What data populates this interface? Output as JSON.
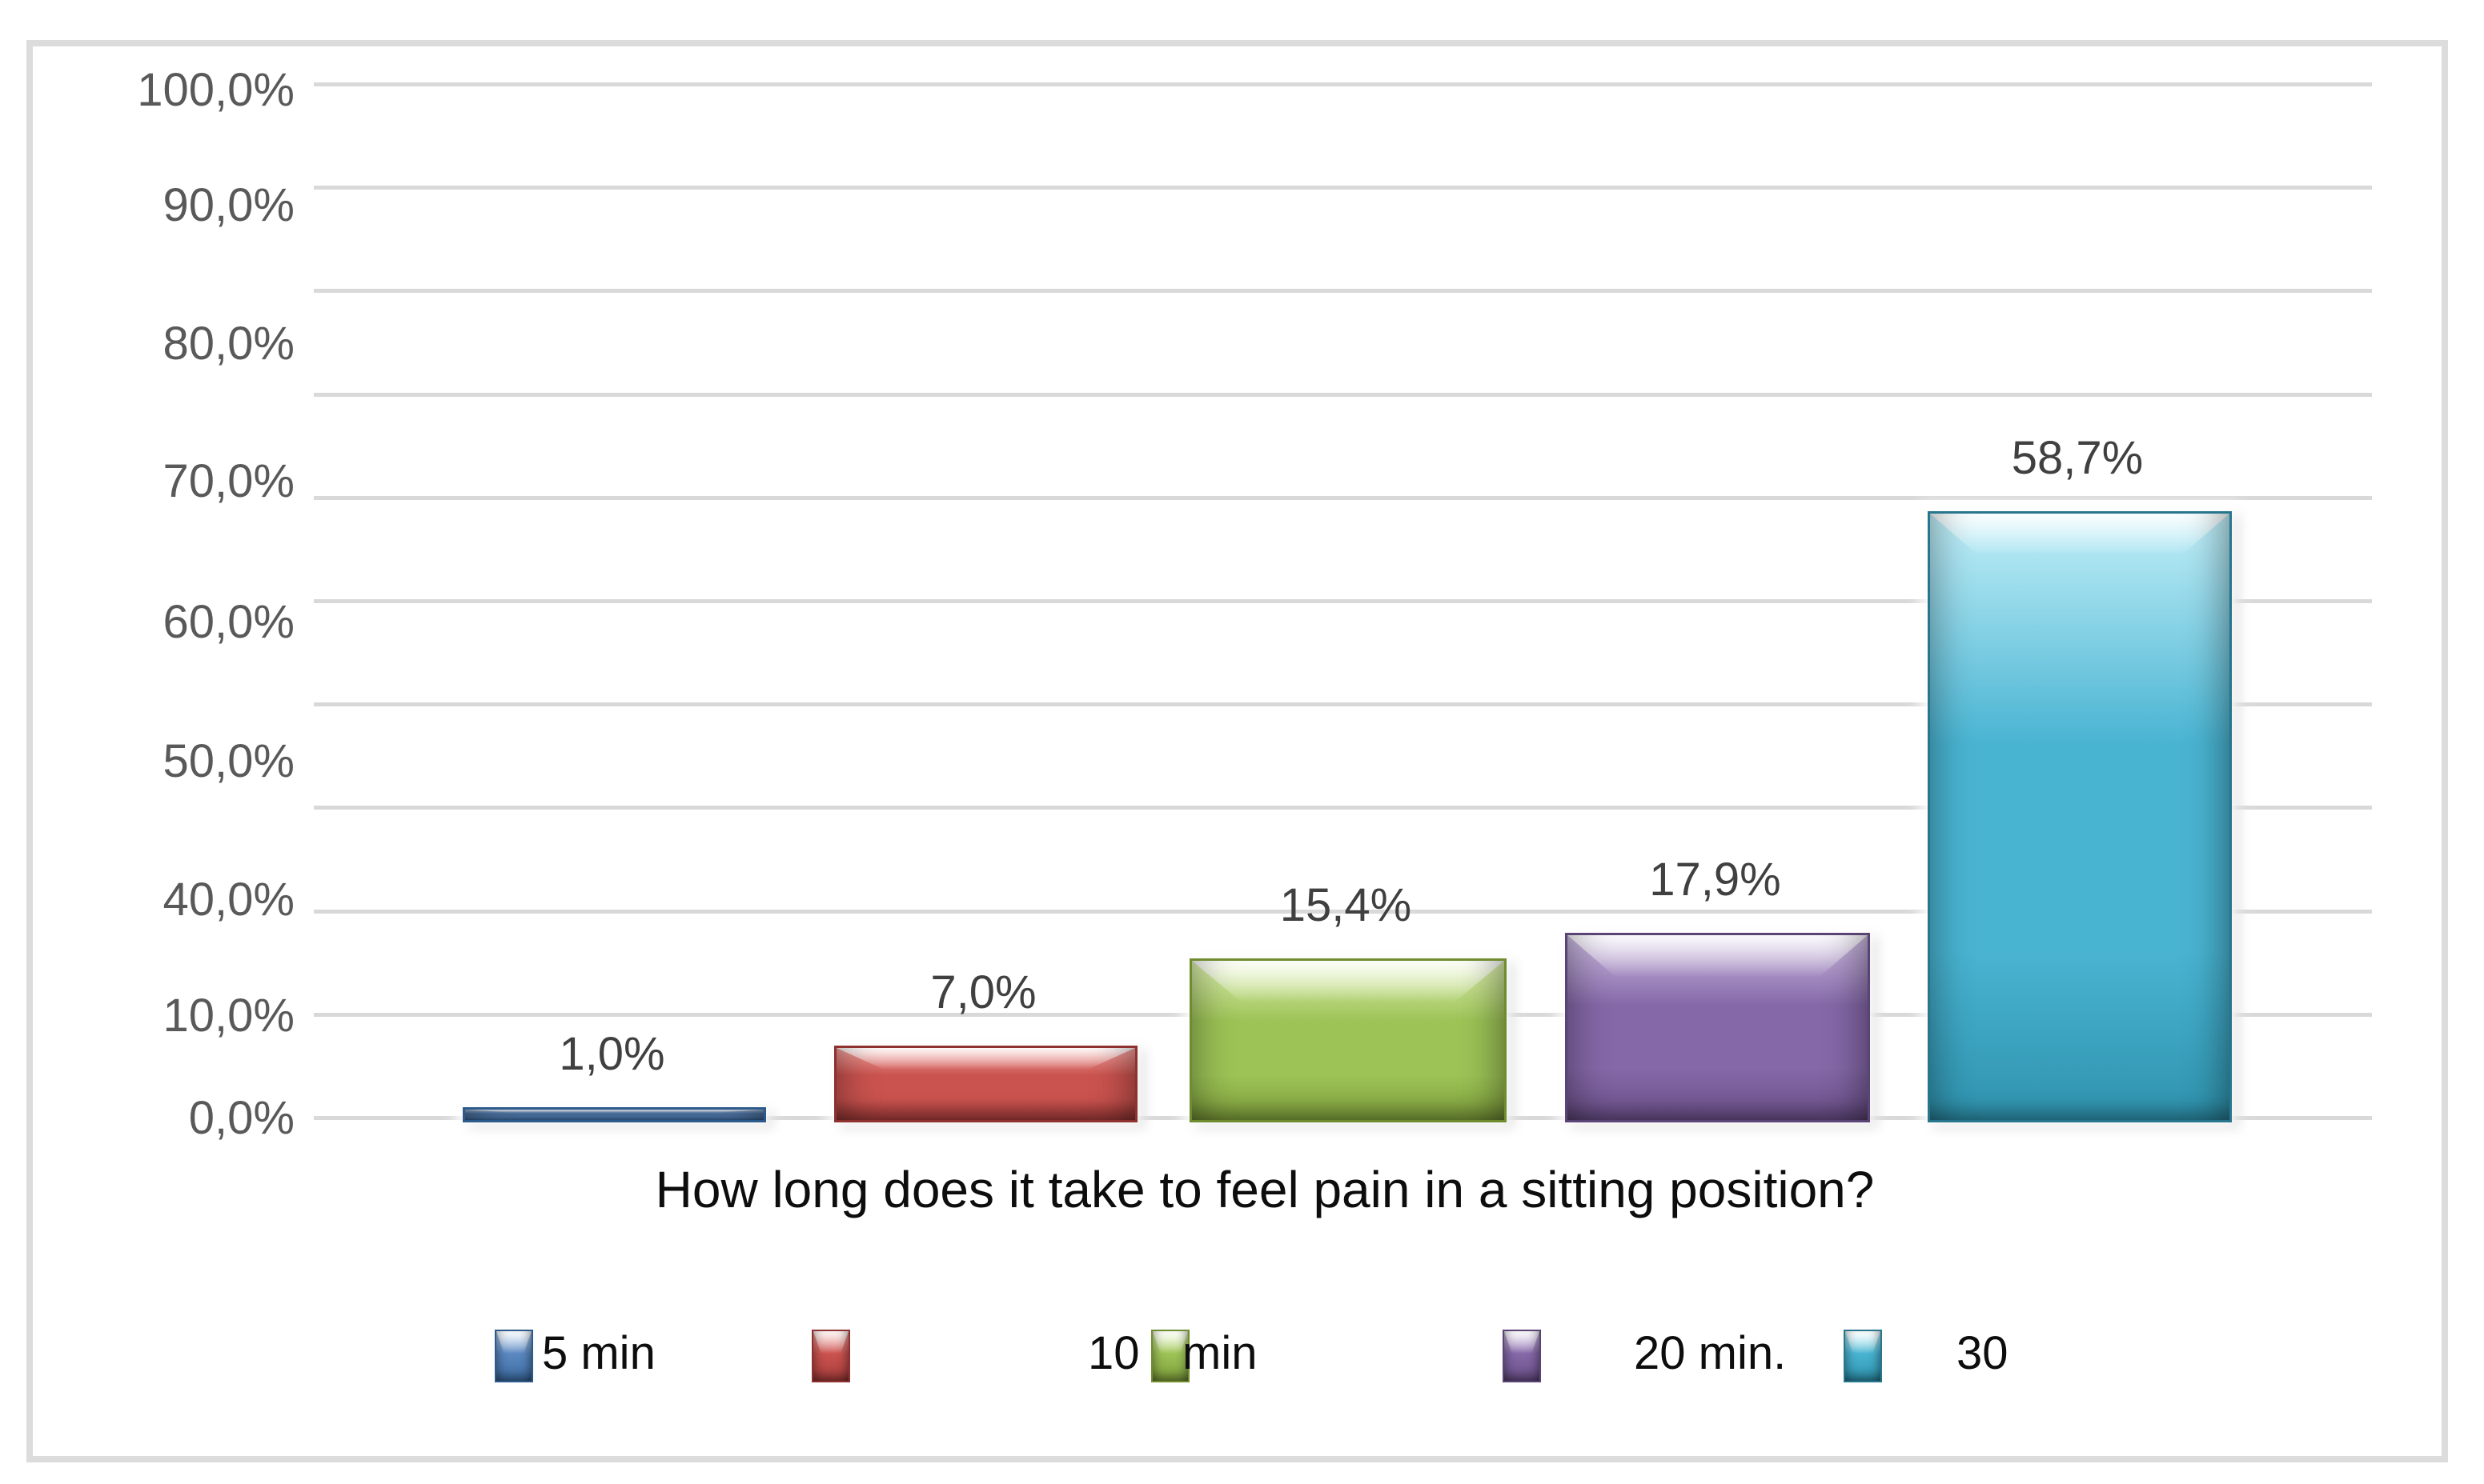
{
  "chart_data": {
    "type": "bar",
    "title": "",
    "xlabel": "How long does it take to feel pain in a sitting position?",
    "ylabel": "",
    "ylim": [
      0,
      100
    ],
    "ytick_labels": [
      "100,0%",
      "90,0%",
      "80,0%",
      "70,0%",
      "60,0%",
      "50,0%",
      "40,0%",
      "10,0%",
      "0,0%"
    ],
    "gridline_values": [
      100,
      90,
      80,
      70,
      60,
      50,
      40,
      30,
      20,
      10,
      0
    ],
    "grid": true,
    "legend_position": "bottom",
    "categories": [
      "5 min",
      "",
      "10 min",
      "20 min.",
      "30"
    ],
    "series": [
      {
        "name": "5 min",
        "value": 1.0,
        "value_label": "1,0%",
        "color": "#4F81BD"
      },
      {
        "name": "",
        "value": 7.0,
        "value_label": "7,0%",
        "color": "#C0504D"
      },
      {
        "name": "10 min",
        "value": 15.4,
        "value_label": "15,4%",
        "color": "#9BBB59"
      },
      {
        "name": "20 min.",
        "value": 17.9,
        "value_label": "17,9%",
        "color": "#8064A2"
      },
      {
        "name": "30",
        "value": 58.7,
        "value_label": "58,7%",
        "color": "#4BACC6"
      }
    ],
    "legend_items": [
      {
        "prefix": "",
        "label": "5 min",
        "color": "#4F81BD"
      },
      {
        "prefix": "",
        "label": "",
        "color": "#C0504D"
      },
      {
        "prefix": "10",
        "label": "min",
        "color": "#9BBB59"
      },
      {
        "prefix": "",
        "label": "20 min.",
        "color": "#8064A2"
      },
      {
        "prefix": "",
        "label": "30",
        "color": "#4BACC6"
      }
    ],
    "colors": {
      "grid": "#D9D9D9",
      "frame_border": "#DCDCDC",
      "ytick_text": "#595959",
      "value_label_text": "#404040",
      "title_text": "#0D0D0D"
    }
  }
}
